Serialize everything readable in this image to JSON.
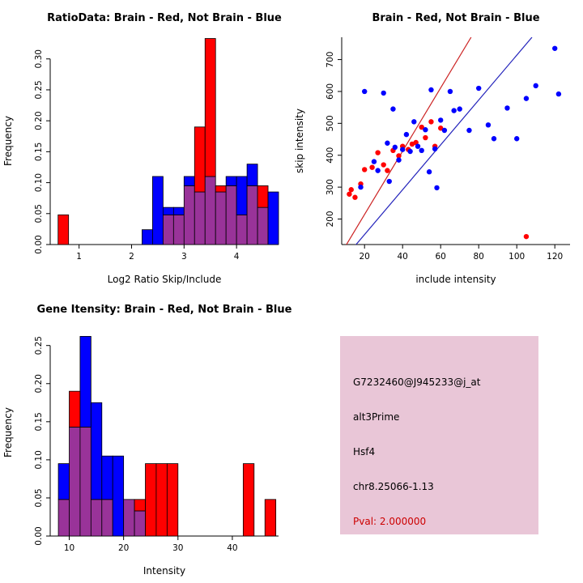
{
  "colors": {
    "red": "#FF0000",
    "blue": "#0000FF",
    "overlap": "#993399",
    "red_line": "#CC2222",
    "blue_line": "#2222BB",
    "axis": "#000000"
  },
  "chart_data": [
    {
      "type": "histogram-overlay",
      "title": "RatioData: Brain - Red, Not Brain - Blue",
      "xlabel": "Log2 Ratio Skip/Include",
      "ylabel": "Frequency",
      "xlim": [
        0.45,
        4.8
      ],
      "ylim": [
        0,
        0.335
      ],
      "xticks": [
        1,
        2,
        3,
        4
      ],
      "xtick_labels": [
        "1",
        "2",
        "3",
        "4"
      ],
      "yticks": [
        0,
        0.05,
        0.1,
        0.15,
        0.2,
        0.25,
        0.3
      ],
      "ytick_labels": [
        "0.00",
        "0.05",
        "0.10",
        "0.15",
        "0.20",
        "0.25",
        "0.30"
      ],
      "bin_width": 0.2,
      "series": [
        {
          "name": "Brain",
          "color_key": "red",
          "bins": [
            [
              0.6,
              0.048
            ],
            [
              2.6,
              0.048
            ],
            [
              2.8,
              0.048
            ],
            [
              3.0,
              0.095
            ],
            [
              3.2,
              0.19
            ],
            [
              3.4,
              0.333
            ],
            [
              3.6,
              0.095
            ],
            [
              3.8,
              0.095
            ],
            [
              4.0,
              0.048
            ],
            [
              4.2,
              0.095
            ],
            [
              4.4,
              0.095
            ]
          ]
        },
        {
          "name": "Not Brain",
          "color_key": "blue",
          "bins": [
            [
              2.2,
              0.024
            ],
            [
              2.4,
              0.11
            ],
            [
              2.6,
              0.06
            ],
            [
              2.8,
              0.06
            ],
            [
              3.0,
              0.11
            ],
            [
              3.2,
              0.085
            ],
            [
              3.4,
              0.11
            ],
            [
              3.6,
              0.085
            ],
            [
              3.8,
              0.11
            ],
            [
              4.0,
              0.11
            ],
            [
              4.2,
              0.13
            ],
            [
              4.4,
              0.06
            ],
            [
              4.6,
              0.085
            ]
          ]
        }
      ]
    },
    {
      "type": "scatter",
      "title": "Brain - Red, Not Brain - Blue",
      "xlabel": "include intensity",
      "ylabel": "skip intensity",
      "xlim": [
        8,
        128
      ],
      "ylim": [
        120,
        770
      ],
      "xticks": [
        20,
        40,
        60,
        80,
        100,
        120
      ],
      "xtick_labels": [
        "20",
        "40",
        "60",
        "80",
        "100",
        "120"
      ],
      "yticks": [
        200,
        300,
        400,
        500,
        600,
        700
      ],
      "ytick_labels": [
        "200",
        "300",
        "400",
        "500",
        "600",
        "700"
      ],
      "series": [
        {
          "name": "Brain",
          "color_key": "red",
          "points": [
            [
              12,
              278
            ],
            [
              13,
              292
            ],
            [
              15,
              268
            ],
            [
              18,
              310
            ],
            [
              20,
              355
            ],
            [
              24,
              362
            ],
            [
              27,
              408
            ],
            [
              30,
              370
            ],
            [
              32,
              352
            ],
            [
              35,
              415
            ],
            [
              38,
              398
            ],
            [
              40,
              428
            ],
            [
              43,
              418
            ],
            [
              45,
              435
            ],
            [
              47,
              440
            ],
            [
              50,
              488
            ],
            [
              52,
              455
            ],
            [
              55,
              505
            ],
            [
              57,
              428
            ],
            [
              60,
              485
            ],
            [
              105,
              145
            ]
          ]
        },
        {
          "name": "Not Brain",
          "color_key": "blue",
          "points": [
            [
              18,
              300
            ],
            [
              20,
              600
            ],
            [
              25,
              380
            ],
            [
              27,
              352
            ],
            [
              30,
              595
            ],
            [
              32,
              438
            ],
            [
              33,
              318
            ],
            [
              35,
              545
            ],
            [
              36,
              425
            ],
            [
              38,
              385
            ],
            [
              40,
              418
            ],
            [
              42,
              465
            ],
            [
              44,
              412
            ],
            [
              46,
              505
            ],
            [
              48,
              428
            ],
            [
              50,
              415
            ],
            [
              52,
              480
            ],
            [
              54,
              348
            ],
            [
              55,
              605
            ],
            [
              57,
              420
            ],
            [
              58,
              298
            ],
            [
              60,
              510
            ],
            [
              62,
              478
            ],
            [
              65,
              600
            ],
            [
              67,
              540
            ],
            [
              70,
              545
            ],
            [
              75,
              478
            ],
            [
              80,
              610
            ],
            [
              85,
              495
            ],
            [
              88,
              452
            ],
            [
              95,
              548
            ],
            [
              100,
              452
            ],
            [
              105,
              578
            ],
            [
              110,
              618
            ],
            [
              120,
              735
            ],
            [
              122,
              592
            ]
          ]
        }
      ],
      "lines": [
        {
          "name": "brain-fit",
          "color_key": "red_line",
          "p1": [
            10,
            115
          ],
          "p2": [
            76,
            770
          ]
        },
        {
          "name": "not-brain-fit",
          "color_key": "blue_line",
          "p1": [
            12,
            95
          ],
          "p2": [
            108,
            770
          ]
        }
      ]
    },
    {
      "type": "histogram-overlay",
      "title": "Gene Itensity: Brain - Red, Not Brain - Blue",
      "xlabel": "Intensity",
      "ylabel": "Frequency",
      "xlim": [
        6.5,
        48.5
      ],
      "ylim": [
        0,
        0.272
      ],
      "xticks": [
        10,
        20,
        30,
        40
      ],
      "xtick_labels": [
        "10",
        "20",
        "30",
        "40"
      ],
      "yticks": [
        0,
        0.05,
        0.1,
        0.15,
        0.2,
        0.25
      ],
      "ytick_labels": [
        "0.00",
        "0.05",
        "0.10",
        "0.15",
        "0.20",
        "0.25"
      ],
      "bin_width": 2,
      "series": [
        {
          "name": "Brain",
          "color_key": "red",
          "bins": [
            [
              8,
              0.048
            ],
            [
              10,
              0.19
            ],
            [
              12,
              0.143
            ],
            [
              14,
              0.048
            ],
            [
              16,
              0.048
            ],
            [
              20,
              0.048
            ],
            [
              22,
              0.048
            ],
            [
              24,
              0.095
            ],
            [
              26,
              0.095
            ],
            [
              28,
              0.095
            ],
            [
              42,
              0.095
            ],
            [
              46,
              0.048
            ]
          ]
        },
        {
          "name": "Not Brain",
          "color_key": "blue",
          "bins": [
            [
              8,
              0.095
            ],
            [
              10,
              0.143
            ],
            [
              12,
              0.262
            ],
            [
              14,
              0.175
            ],
            [
              16,
              0.105
            ],
            [
              18,
              0.105
            ],
            [
              20,
              0.048
            ],
            [
              22,
              0.033
            ]
          ]
        }
      ]
    }
  ],
  "info_box": {
    "bg": "#E9C6D7",
    "lines": [
      "G7232460@J945233@j_at",
      "alt3Prime",
      "Hsf4",
      "chr8.25066-1.13"
    ],
    "pval": "Pval: 2.000000",
    "pval_color": "#CC0000"
  }
}
